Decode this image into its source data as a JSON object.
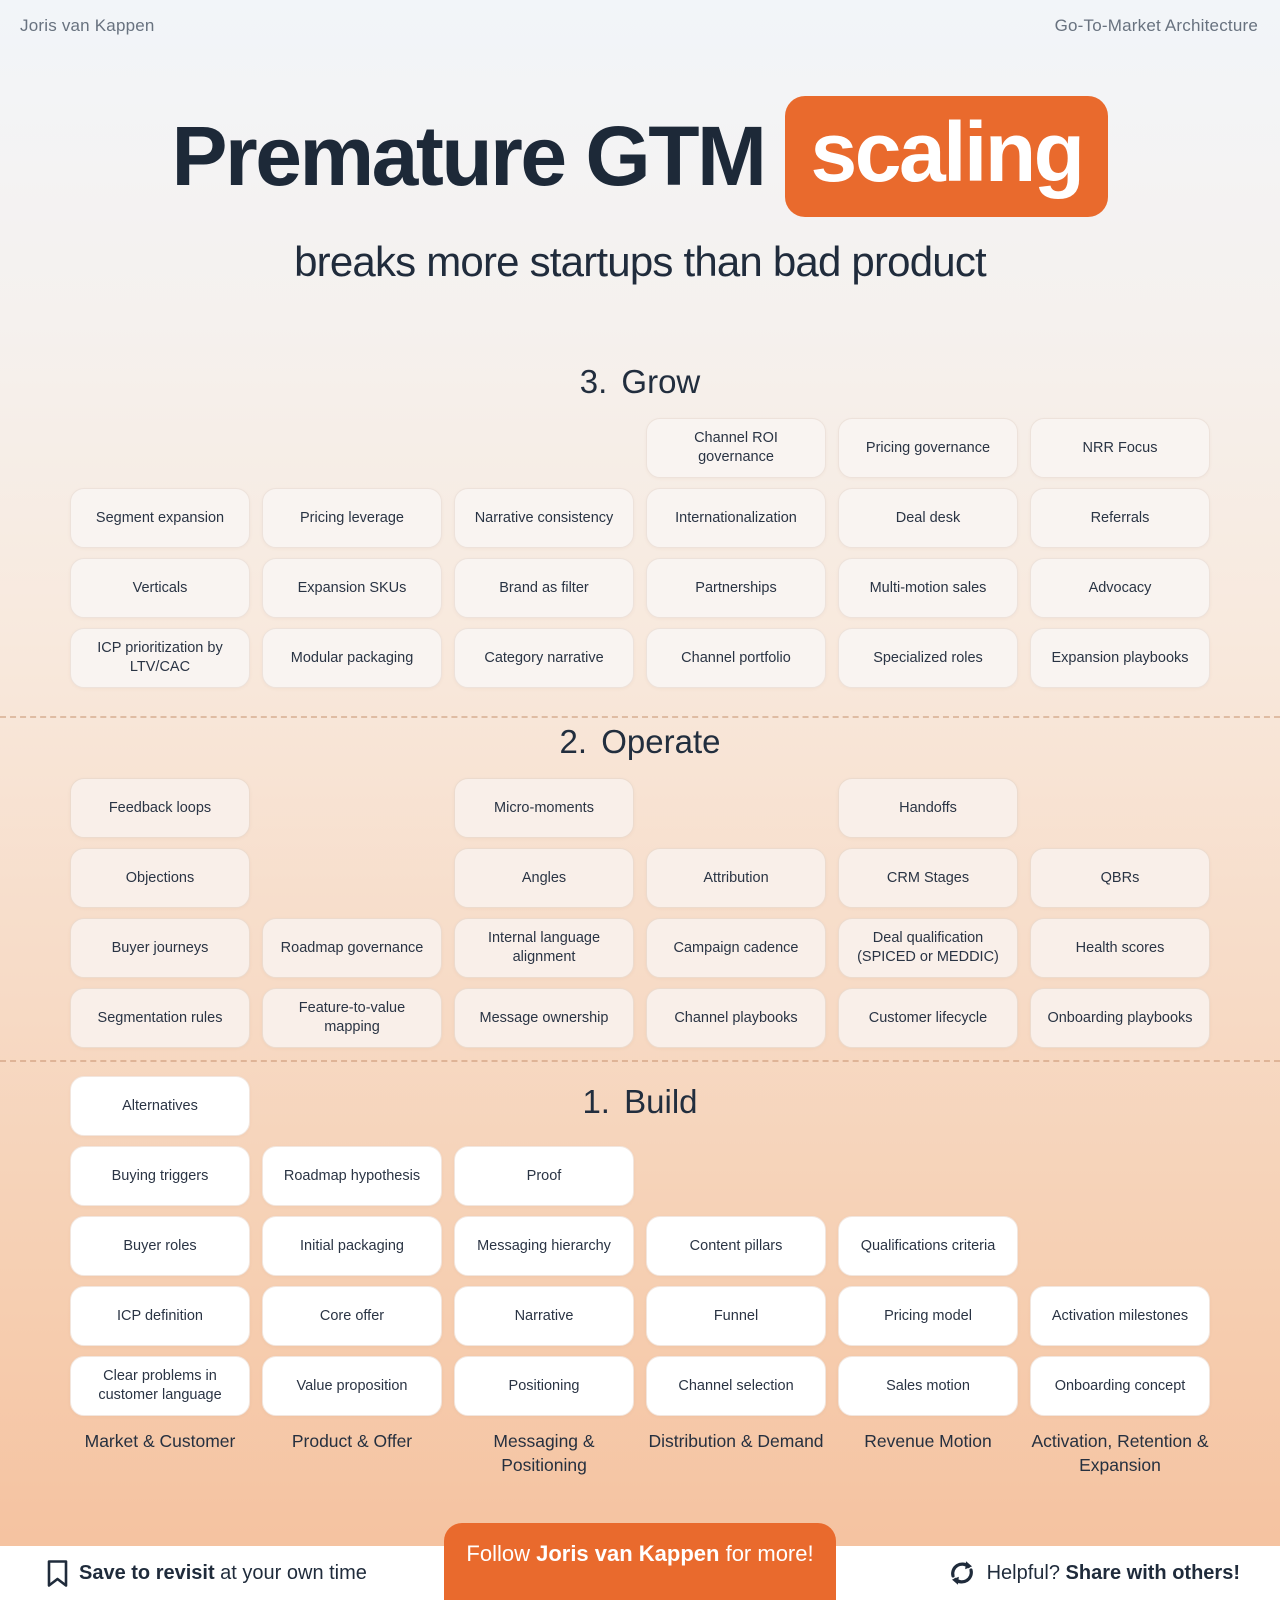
{
  "header": {
    "author": "Joris van Kappen",
    "context": "Go-To-Market Architecture"
  },
  "title": {
    "main": "Premature GTM",
    "highlight": "scaling",
    "subtitle": "breaks more startups than bad product"
  },
  "colors": {
    "accent_orange": "#e96a2d",
    "navy_text": "#212d3d",
    "muted_gray": "#68727f",
    "grow_card_bg": "#f9f4f1",
    "operate_card_bg": "#f9efe9",
    "build_card_bg": "#ffffff"
  },
  "sections": {
    "grow": {
      "heading": "3. Grow",
      "rows": [
        [
          null,
          null,
          null,
          "Channel ROI governance",
          "Pricing governance",
          "NRR Focus"
        ],
        [
          "Segment expansion",
          "Pricing leverage",
          "Narrative consistency",
          "Internationalization",
          "Deal desk",
          "Referrals"
        ],
        [
          "Verticals",
          "Expansion SKUs",
          "Brand as filter",
          "Partnerships",
          "Multi-motion sales",
          "Advocacy"
        ],
        [
          "ICP prioritization by LTV/CAC",
          "Modular packaging",
          "Category narrative",
          "Channel portfolio",
          "Specialized roles",
          "Expansion playbooks"
        ]
      ]
    },
    "operate": {
      "heading": "2. Operate",
      "rows": [
        [
          "Feedback loops",
          null,
          "Micro-moments",
          null,
          "Handoffs",
          null
        ],
        [
          "Objections",
          null,
          "Angles",
          "Attribution",
          "CRM Stages",
          "QBRs"
        ],
        [
          "Buyer journeys",
          "Roadmap governance",
          "Internal language alignment",
          "Campaign cadence",
          "Deal qualification (SPICED or MEDDIC)",
          "Health scores"
        ],
        [
          "Segmentation rules",
          "Feature-to-value mapping",
          "Message ownership",
          "Channel playbooks",
          "Customer lifecycle",
          "Onboarding playbooks"
        ]
      ]
    },
    "build": {
      "heading": "1. Build",
      "rows": [
        [
          "Alternatives",
          null,
          null,
          null,
          null,
          null
        ],
        [
          "Buying triggers",
          "Roadmap hypothesis",
          "Proof",
          null,
          null,
          null
        ],
        [
          "Buyer roles",
          "Initial packaging",
          "Messaging hierarchy",
          "Content pillars",
          "Qualifications criteria",
          null
        ],
        [
          "ICP definition",
          "Core offer",
          "Narrative",
          "Funnel",
          "Pricing model",
          "Activation milestones"
        ],
        [
          "Clear problems in customer language",
          "Value proposition",
          "Positioning",
          "Channel selection",
          "Sales motion",
          "Onboarding concept"
        ]
      ]
    }
  },
  "columns": [
    "Market & Customer",
    "Product & Offer",
    "Messaging & Positioning",
    "Distribution & Demand",
    "Revenue Motion",
    "Activation, Retention & Expansion"
  ],
  "footer": {
    "save_bold": "Save to revisit",
    "save_rest": " at your own time",
    "follow_pre": "Follow ",
    "follow_name": "Joris van Kappen",
    "follow_post": " for more!",
    "share_pre": "Helpful? ",
    "share_bold": "Share with others!"
  }
}
